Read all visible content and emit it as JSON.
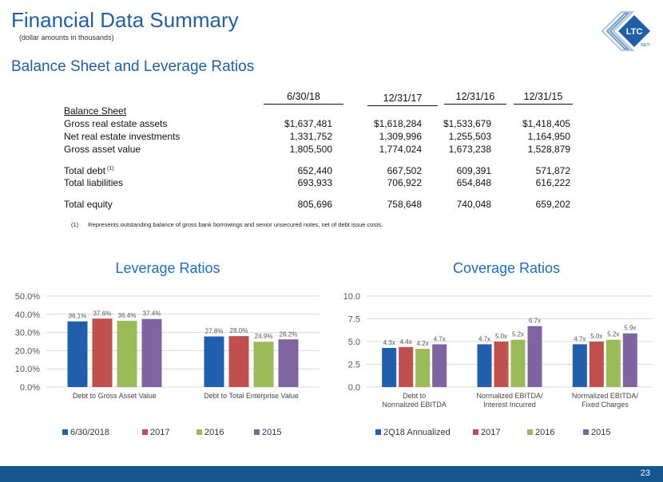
{
  "header": {
    "title": "Financial Data Summary",
    "subtitle": "(dollar amounts in thousands)",
    "section": "Balance Sheet and Leverage Ratios",
    "logo_text": "LTC",
    "logo_sub": "REIT"
  },
  "balance_sheet": {
    "columns": [
      "6/30/18",
      "12/31/17",
      "12/31/16",
      "12/31/15"
    ],
    "heading": "Balance Sheet",
    "rows": [
      {
        "label": "Gross real estate assets",
        "sup": "",
        "values": [
          "$1,637,481",
          "$1,618,284",
          "$1,533,679",
          "$1,418,405"
        ]
      },
      {
        "label": "Net real estate investments",
        "sup": "",
        "values": [
          "1,331,752",
          "1,309,996",
          "1,255,503",
          "1,164,950"
        ]
      },
      {
        "label": "Gross asset value",
        "sup": "",
        "values": [
          "1,805,500",
          "1,774,024",
          "1,673,238",
          "1,528,879"
        ]
      },
      {
        "label": "Total debt",
        "sup": "(1)",
        "values": [
          "652,440",
          "667,502",
          "609,391",
          "571,872"
        ]
      },
      {
        "label": "Total liabilities",
        "sup": "",
        "values": [
          "693,933",
          "706,922",
          "654,848",
          "616,222"
        ]
      },
      {
        "label": "Total equity",
        "sup": "",
        "values": [
          "805,696",
          "758,648",
          "740,048",
          "659,202"
        ]
      }
    ],
    "footnote_marker": "(1)",
    "footnote": "Represents outstanding balance of gross bank borrowings and senior unsecured notes, net of debt issue costs."
  },
  "colors": {
    "s1": "#1f5fae",
    "s2": "#c0504d",
    "s3": "#9bbb59",
    "s4": "#8064a2",
    "brand": "#1f5fa8"
  },
  "chart_data": [
    {
      "type": "bar",
      "title": "Leverage Ratios",
      "categories": [
        [
          "Debt to Gross Asset Value"
        ],
        [
          "Debt to Total Enterprise Value"
        ]
      ],
      "series": [
        {
          "name": "6/30/2018",
          "values": [
            36.1,
            27.8
          ],
          "labels": [
            "36.1%",
            "27.8%"
          ]
        },
        {
          "name": "2017",
          "values": [
            37.6,
            28.0
          ],
          "labels": [
            "37.6%",
            "28.0%"
          ]
        },
        {
          "name": "2016",
          "values": [
            36.4,
            24.9
          ],
          "labels": [
            "36.4%",
            "24.9%"
          ]
        },
        {
          "name": "2015",
          "values": [
            37.4,
            26.2
          ],
          "labels": [
            "37.4%",
            "26.2%"
          ]
        }
      ],
      "ylim": [
        0,
        50
      ],
      "yticks": [
        0,
        10,
        20,
        30,
        40,
        50
      ],
      "ytick_labels": [
        "0.0%",
        "10.0%",
        "20.0%",
        "30.0%",
        "40.0%",
        "50.0%"
      ],
      "legend": "bottom"
    },
    {
      "type": "bar",
      "title": "Coverage Ratios",
      "categories": [
        [
          "Debt to",
          "Normalized EBITDA"
        ],
        [
          "Normalized EBITDA/",
          "Interest Incurred"
        ],
        [
          "Normalized EBITDA/",
          "Fixed Charges"
        ]
      ],
      "series": [
        {
          "name": "2Q18 Annualized",
          "values": [
            4.3,
            4.7,
            4.7
          ],
          "labels": [
            "4.3x",
            "4.7x",
            "4.7x"
          ]
        },
        {
          "name": "2017",
          "values": [
            4.4,
            5.0,
            5.0
          ],
          "labels": [
            "4.4x",
            "5.0x",
            "5.0x"
          ]
        },
        {
          "name": "2016",
          "values": [
            4.2,
            5.2,
            5.2
          ],
          "labels": [
            "4.2x",
            "5.2x",
            "5.2x"
          ]
        },
        {
          "name": "2015",
          "values": [
            4.7,
            6.7,
            5.9
          ],
          "labels": [
            "4.7x",
            "6.7x",
            "5.9x"
          ]
        }
      ],
      "ylim": [
        0,
        10
      ],
      "yticks": [
        0,
        2.5,
        5,
        7.5,
        10
      ],
      "ytick_labels": [
        "0.0",
        "2.5",
        "5.0",
        "7.5",
        "10.0"
      ],
      "legend": "bottom"
    }
  ],
  "footer": {
    "page": "23"
  }
}
